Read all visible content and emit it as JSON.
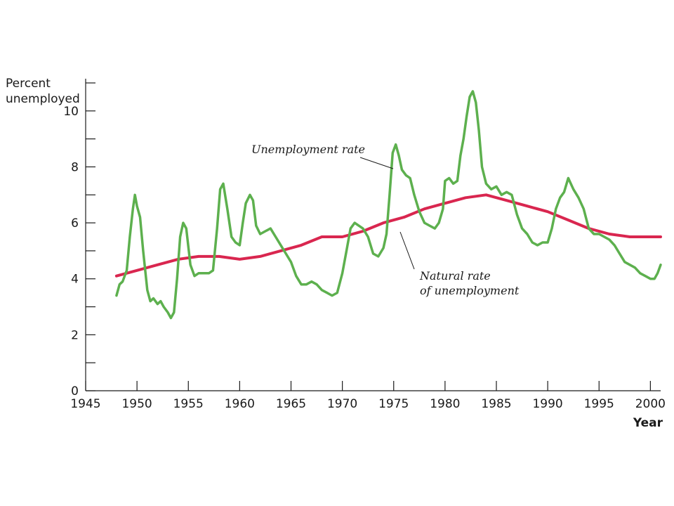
{
  "chart_data": {
    "type": "line",
    "title": "",
    "xlabel": "Year",
    "ylabel_line1": "Percent",
    "ylabel_line2": "unemployed",
    "xlim": [
      1945,
      2001
    ],
    "ylim": [
      0,
      11
    ],
    "x_ticks": [
      1945,
      1950,
      1955,
      1960,
      1965,
      1970,
      1975,
      1980,
      1985,
      1990,
      1995,
      2000
    ],
    "x_tick_labels": [
      "1945",
      "1950",
      "1955",
      "1960",
      "1965",
      "1970",
      "1975",
      "1980",
      "1985",
      "1990",
      "1995",
      "2000"
    ],
    "y_ticks": [
      0,
      1,
      2,
      3,
      4,
      5,
      6,
      7,
      8,
      9,
      10,
      11
    ],
    "y_tick_labels": [
      "0",
      "",
      "2",
      "",
      "4",
      "",
      "6",
      "",
      "8",
      "",
      "10",
      ""
    ],
    "grid": false,
    "series": [
      {
        "name": "Unemployment rate",
        "color": "#5db04e",
        "x": [
          1948.0,
          1948.3,
          1948.6,
          1949.0,
          1949.3,
          1949.6,
          1949.8,
          1950.0,
          1950.3,
          1950.6,
          1951.0,
          1951.3,
          1951.6,
          1952.0,
          1952.3,
          1952.6,
          1953.0,
          1953.3,
          1953.6,
          1953.9,
          1954.2,
          1954.5,
          1954.8,
          1955.2,
          1955.6,
          1956.0,
          1956.5,
          1957.0,
          1957.4,
          1957.8,
          1958.1,
          1958.4,
          1958.8,
          1959.2,
          1959.6,
          1960.0,
          1960.3,
          1960.6,
          1961.0,
          1961.3,
          1961.6,
          1962.0,
          1962.5,
          1963.0,
          1963.5,
          1964.0,
          1964.5,
          1965.0,
          1965.5,
          1966.0,
          1966.5,
          1967.0,
          1967.5,
          1968.0,
          1968.5,
          1969.0,
          1969.5,
          1970.0,
          1970.4,
          1970.8,
          1971.2,
          1971.6,
          1972.0,
          1972.5,
          1973.0,
          1973.5,
          1974.0,
          1974.3,
          1974.6,
          1974.9,
          1975.2,
          1975.5,
          1975.8,
          1976.2,
          1976.6,
          1977.0,
          1977.5,
          1978.0,
          1978.5,
          1979.0,
          1979.4,
          1979.8,
          1980.0,
          1980.4,
          1980.8,
          1981.2,
          1981.5,
          1981.8,
          1982.1,
          1982.4,
          1982.7,
          1983.0,
          1983.3,
          1983.6,
          1984.0,
          1984.5,
          1985.0,
          1985.5,
          1986.0,
          1986.5,
          1987.0,
          1987.5,
          1988.0,
          1988.5,
          1989.0,
          1989.5,
          1990.0,
          1990.4,
          1990.8,
          1991.2,
          1991.6,
          1992.0,
          1992.5,
          1993.0,
          1993.5,
          1994.0,
          1994.5,
          1995.0,
          1995.5,
          1996.0,
          1996.5,
          1997.0,
          1997.5,
          1998.0,
          1998.5,
          1999.0,
          1999.5,
          2000.0,
          2000.4,
          2000.7,
          2001.0
        ],
        "y": [
          3.4,
          3.8,
          3.9,
          4.3,
          5.5,
          6.5,
          7.0,
          6.6,
          6.2,
          5.0,
          3.6,
          3.2,
          3.3,
          3.1,
          3.2,
          3.0,
          2.8,
          2.6,
          2.8,
          4.0,
          5.5,
          6.0,
          5.8,
          4.5,
          4.1,
          4.2,
          4.2,
          4.2,
          4.3,
          5.8,
          7.2,
          7.4,
          6.5,
          5.5,
          5.3,
          5.2,
          6.0,
          6.7,
          7.0,
          6.8,
          5.9,
          5.6,
          5.7,
          5.8,
          5.5,
          5.2,
          4.9,
          4.6,
          4.1,
          3.8,
          3.8,
          3.9,
          3.8,
          3.6,
          3.5,
          3.4,
          3.5,
          4.2,
          5.0,
          5.8,
          6.0,
          5.9,
          5.8,
          5.5,
          4.9,
          4.8,
          5.1,
          5.6,
          7.0,
          8.5,
          8.8,
          8.4,
          7.9,
          7.7,
          7.6,
          7.0,
          6.4,
          6.0,
          5.9,
          5.8,
          6.0,
          6.5,
          7.5,
          7.6,
          7.4,
          7.5,
          8.4,
          9.0,
          9.8,
          10.5,
          10.7,
          10.3,
          9.3,
          8.0,
          7.4,
          7.2,
          7.3,
          7.0,
          7.1,
          7.0,
          6.3,
          5.8,
          5.6,
          5.3,
          5.2,
          5.3,
          5.3,
          5.8,
          6.5,
          6.9,
          7.1,
          7.6,
          7.2,
          6.9,
          6.5,
          5.8,
          5.6,
          5.6,
          5.5,
          5.4,
          5.2,
          4.9,
          4.6,
          4.5,
          4.4,
          4.2,
          4.1,
          4.0,
          4.0,
          4.2,
          4.5
        ]
      },
      {
        "name": "Natural rate of unemployment",
        "color": "#d9264f",
        "x": [
          1948,
          1950,
          1952,
          1954,
          1956,
          1958,
          1960,
          1962,
          1964,
          1966,
          1968,
          1970,
          1972,
          1974,
          1976,
          1978,
          1980,
          1982,
          1984,
          1986,
          1988,
          1990,
          1992,
          1994,
          1996,
          1998,
          2000,
          2001
        ],
        "y": [
          4.1,
          4.3,
          4.5,
          4.7,
          4.8,
          4.8,
          4.7,
          4.8,
          5.0,
          5.2,
          5.5,
          5.5,
          5.7,
          6.0,
          6.2,
          6.5,
          6.7,
          6.9,
          7.0,
          6.8,
          6.6,
          6.4,
          6.1,
          5.8,
          5.6,
          5.5,
          5.5,
          5.5
        ]
      }
    ],
    "annotations": {
      "unemployment_label": "Unemployment rate",
      "natural_label_line1": "Natural rate",
      "natural_label_line2": "of unemployment"
    }
  }
}
